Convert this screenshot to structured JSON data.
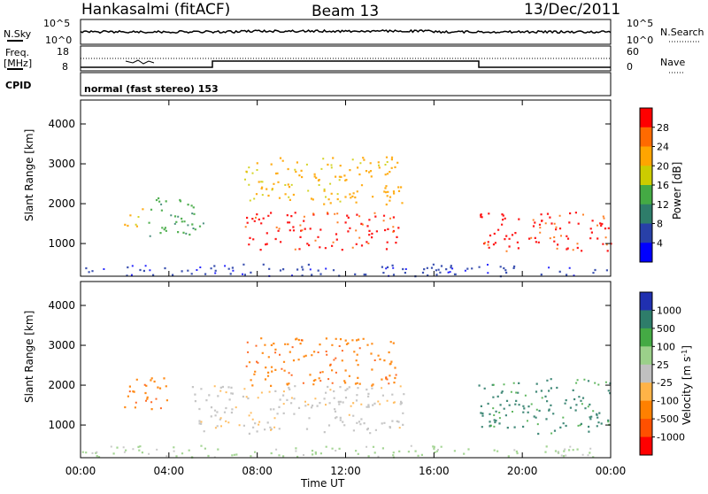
{
  "header": {
    "station": "Hankasalmi (fitACF)",
    "beam": "Beam 13",
    "date": "13/Dec/2011"
  },
  "status_panels": {
    "nsky_label": "N.Sky",
    "nsearch_label": "N.Search",
    "freq_label_line1": "Freq.",
    "freq_label_line2": "[MHz]",
    "cpid_label": "CPID",
    "nave_label": "Nave",
    "noise_left_ticks": [
      "10^5",
      "10^0"
    ],
    "noise_right_ticks": [
      "10^5",
      "10^0"
    ],
    "freq_left_ticks": [
      "18",
      "8"
    ],
    "nave_right_ticks": [
      "60",
      "0"
    ],
    "cpid_text": "normal (fast stereo) 153"
  },
  "chart_data": [
    {
      "type": "heatmap",
      "title": "Power",
      "ylabel": "Slant Range [km]",
      "xlabel": "",
      "x_ticks": [
        "00:00",
        "04:00",
        "08:00",
        "12:00",
        "16:00",
        "20:00",
        "00:00"
      ],
      "xlim_hours": [
        0,
        24
      ],
      "y_ticks": [
        1000,
        2000,
        3000,
        4000
      ],
      "ylim": [
        180,
        4600
      ],
      "colorbar_label": "Power [dB]",
      "colorbar_ticks": [
        "28",
        "24",
        "20",
        "16",
        "12",
        "8",
        "4"
      ],
      "colorbar_colors": [
        "#ff0000",
        "#ff6a00",
        "#ffa500",
        "#cccc00",
        "#44aa44",
        "#2e7d6a",
        "#2840a8",
        "#0000ff"
      ],
      "echo_regions": [
        {
          "t0": 0.0,
          "t1": 23.9,
          "r0": 200,
          "r1": 500,
          "dominant": "#2840a8"
        },
        {
          "t0": 1.8,
          "t1": 2.8,
          "r0": 1450,
          "r1": 1900,
          "dominant": "#ffa500"
        },
        {
          "t0": 3.0,
          "t1": 5.6,
          "r0": 1200,
          "r1": 2200,
          "dominant": "#44aa44"
        },
        {
          "t0": 7.4,
          "t1": 14.4,
          "r0": 850,
          "r1": 1800,
          "dominant": "#ff0000"
        },
        {
          "t0": 7.4,
          "t1": 14.6,
          "r0": 2000,
          "r1": 3200,
          "dominant": "#ffa500"
        },
        {
          "t0": 18.0,
          "t1": 24.0,
          "r0": 800,
          "r1": 1800,
          "dominant": "#ff0000"
        }
      ]
    },
    {
      "type": "heatmap",
      "title": "Velocity",
      "ylabel": "Slant Range [km]",
      "xlabel": "Time UT",
      "x_ticks": [
        "00:00",
        "04:00",
        "08:00",
        "12:00",
        "16:00",
        "20:00",
        "00:00"
      ],
      "xlim_hours": [
        0,
        24
      ],
      "y_ticks": [
        1000,
        2000,
        3000,
        4000
      ],
      "ylim": [
        180,
        4600
      ],
      "colorbar_label_main": "Velocity [m s",
      "colorbar_label_exp": "-1",
      "colorbar_label_end": "]",
      "colorbar_ticks": [
        "1000",
        "500",
        "100",
        "25",
        "-25",
        "-100",
        "-500",
        "-1000"
      ],
      "colorbar_colors": [
        "#2030b0",
        "#2e7d6a",
        "#44aa44",
        "#9bd08a",
        "#c0c0c0",
        "#ffb347",
        "#ff8000",
        "#ff5000",
        "#ff0000"
      ],
      "echo_regions": [
        {
          "t0": 0.0,
          "t1": 23.9,
          "r0": 200,
          "r1": 500,
          "dominant": "#9bd08a"
        },
        {
          "t0": 1.8,
          "t1": 4.0,
          "r0": 1400,
          "r1": 2200,
          "dominant": "#ff8000"
        },
        {
          "t0": 5.0,
          "t1": 14.6,
          "r0": 800,
          "r1": 2000,
          "dominant": "#c0c0c0"
        },
        {
          "t0": 7.4,
          "t1": 14.4,
          "r0": 2000,
          "r1": 3200,
          "dominant": "#ff8000"
        },
        {
          "t0": 18.0,
          "t1": 24.0,
          "r0": 800,
          "r1": 2200,
          "dominant": "#2e7d6a"
        }
      ]
    }
  ]
}
